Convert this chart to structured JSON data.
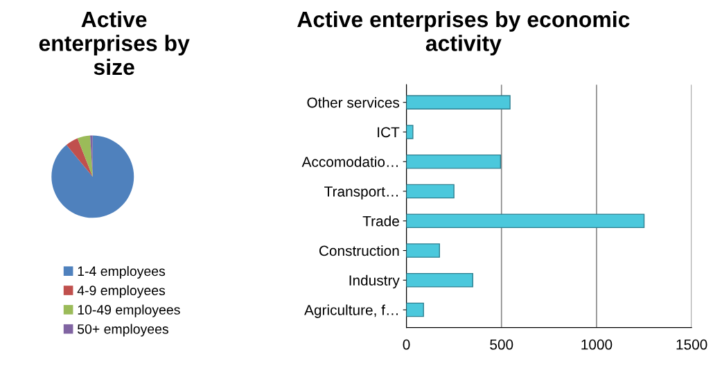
{
  "chart_data": [
    {
      "type": "pie",
      "title": "Active enterprises by size",
      "categories": [
        "1-4 employees",
        "4-9 employees",
        "10-49 employees",
        "50+ employees"
      ],
      "values": [
        89,
        5,
        5,
        1
      ],
      "colors": [
        "#4f81bd",
        "#c0504d",
        "#9bbb59",
        "#8064a2"
      ],
      "legend": "bottom"
    },
    {
      "type": "bar",
      "orientation": "horizontal",
      "title": "Active enterprises by economic activity",
      "categories": [
        "Other services",
        "ICT",
        "Accomodatio…",
        "Transport…",
        "Trade",
        "Construction",
        "Industry",
        "Agriculture, f…"
      ],
      "values": [
        545,
        34,
        495,
        250,
        1250,
        174,
        349,
        90
      ],
      "color": "#4bc8dc",
      "xlim": [
        0,
        1500
      ],
      "xticks": [
        0,
        500,
        1000,
        1500
      ],
      "grid": "x"
    }
  ]
}
